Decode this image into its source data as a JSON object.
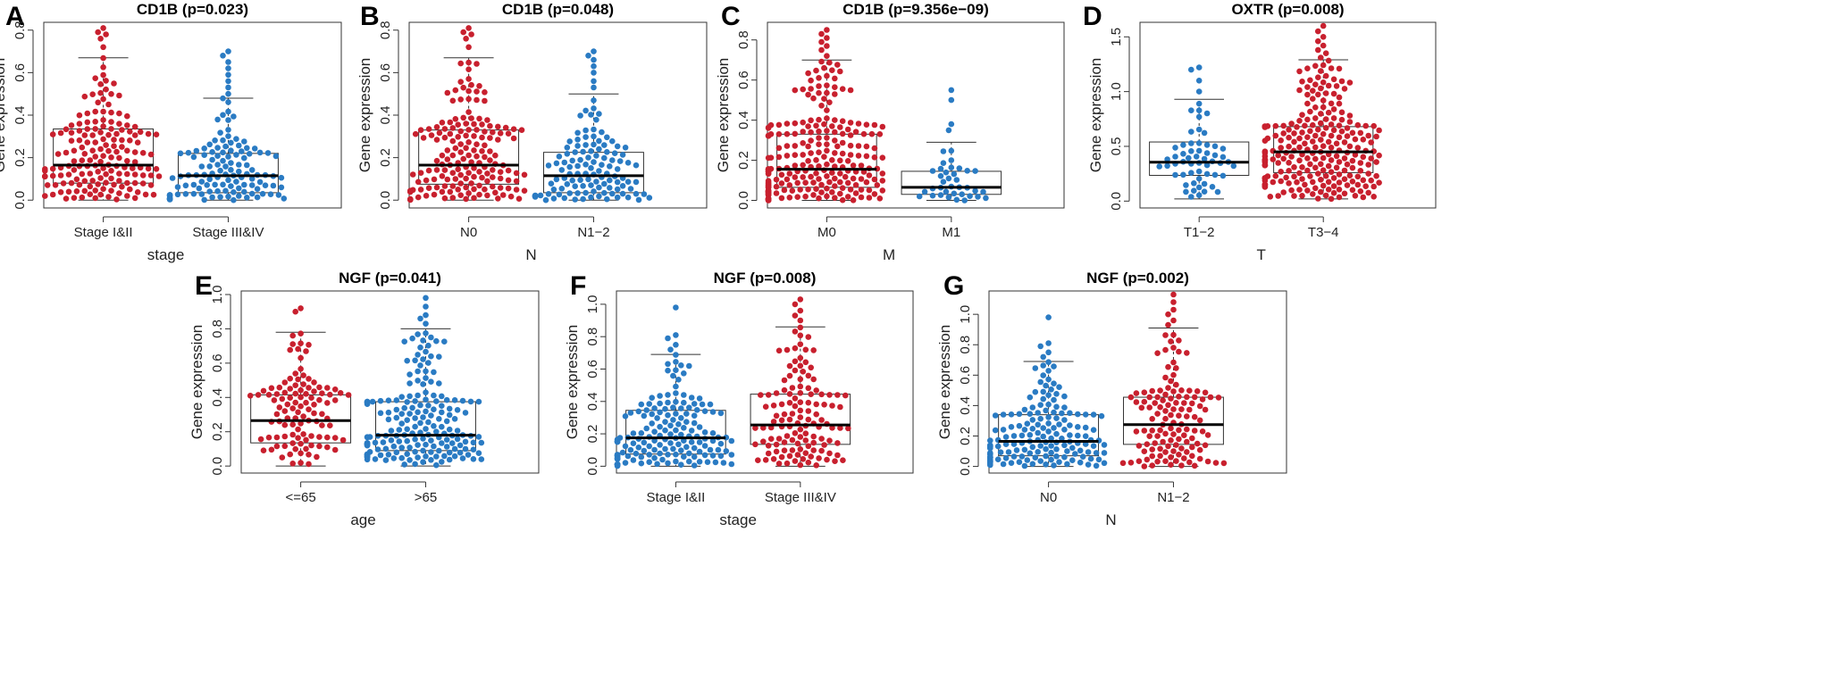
{
  "colors": {
    "red": "#c8202e",
    "blue": "#2a7bc3",
    "axis": "#333333"
  },
  "chart_data": [
    {
      "label": "A",
      "type": "box-beeswarm",
      "title": "CD1B (p=0.023)",
      "xlabel": "stage",
      "ylabel": "Gene expression",
      "ylim": [
        -0.02,
        0.82
      ],
      "yticks": [
        "0.0",
        "0.2",
        "0.4",
        "0.6",
        "0.8"
      ],
      "groups": [
        {
          "name": "Stage I&II",
          "color": "red",
          "n": 170,
          "min": 0.0,
          "q1": 0.08,
          "median": 0.165,
          "q3": 0.335,
          "whisker_high": 0.67,
          "outliers": [
            0.72,
            0.76,
            0.78,
            0.79,
            0.81
          ]
        },
        {
          "name": "Stage III&IV",
          "color": "blue",
          "n": 130,
          "min": 0.0,
          "q1": 0.035,
          "median": 0.115,
          "q3": 0.22,
          "whisker_high": 0.48,
          "outliers": [
            0.5,
            0.53,
            0.56,
            0.59,
            0.62,
            0.65,
            0.68,
            0.7
          ]
        }
      ]
    },
    {
      "label": "B",
      "type": "box-beeswarm",
      "title": "CD1B (p=0.048)",
      "xlabel": "N",
      "ylabel": "Gene expression",
      "ylim": [
        -0.02,
        0.82
      ],
      "yticks": [
        "0.0",
        "0.2",
        "0.4",
        "0.6",
        "0.8"
      ],
      "groups": [
        {
          "name": "N0",
          "color": "red",
          "n": 175,
          "min": 0.0,
          "q1": 0.075,
          "median": 0.165,
          "q3": 0.33,
          "whisker_high": 0.67,
          "outliers": [
            0.72,
            0.76,
            0.78,
            0.79,
            0.81
          ]
        },
        {
          "name": "N1−2",
          "color": "blue",
          "n": 125,
          "min": 0.0,
          "q1": 0.035,
          "median": 0.115,
          "q3": 0.225,
          "whisker_high": 0.5,
          "outliers": [
            0.53,
            0.56,
            0.6,
            0.63,
            0.66,
            0.68,
            0.7
          ]
        }
      ]
    },
    {
      "label": "C",
      "type": "box-beeswarm",
      "title": "CD1B (p=9.356e−09)",
      "xlabel": "M",
      "ylabel": "Gene expression",
      "ylim": [
        -0.02,
        0.87
      ],
      "yticks": [
        "0.0",
        "0.2",
        "0.4",
        "0.6",
        "0.8"
      ],
      "groups": [
        {
          "name": "M0",
          "color": "red",
          "n": 250,
          "min": 0.0,
          "q1": 0.065,
          "median": 0.155,
          "q3": 0.33,
          "whisker_high": 0.7,
          "outliers": [
            0.72,
            0.75,
            0.77,
            0.79,
            0.81,
            0.83,
            0.85
          ]
        },
        {
          "name": "M1",
          "color": "blue",
          "n": 40,
          "min": 0.0,
          "q1": 0.03,
          "median": 0.065,
          "q3": 0.145,
          "whisker_high": 0.29,
          "outliers": [
            0.35,
            0.38,
            0.5,
            0.55
          ]
        }
      ]
    },
    {
      "label": "D",
      "type": "box-beeswarm",
      "title": "OXTR (p=0.008)",
      "xlabel": "T",
      "ylabel": "Gene expression",
      "ylim": [
        -0.03,
        1.6
      ],
      "yticks": [
        "0.0",
        "0.5",
        "1.0",
        "1.5"
      ],
      "groups": [
        {
          "name": "T1−2",
          "color": "blue",
          "n": 60,
          "min": 0.02,
          "q1": 0.235,
          "median": 0.355,
          "q3": 0.54,
          "whisker_high": 0.93,
          "outliers": [
            1.0,
            1.1,
            1.2,
            1.22
          ]
        },
        {
          "name": "T3−4",
          "color": "red",
          "n": 260,
          "min": 0.02,
          "q1": 0.26,
          "median": 0.45,
          "q3": 0.68,
          "whisker_high": 1.29,
          "outliers": [
            1.31,
            1.35,
            1.38,
            1.42,
            1.46,
            1.5,
            1.55,
            1.6
          ]
        }
      ]
    },
    {
      "label": "E",
      "type": "box-beeswarm",
      "title": "NGF (p=0.041)",
      "xlabel": "age",
      "ylabel": "Gene expression",
      "ylim": [
        -0.02,
        1.0
      ],
      "yticks": [
        "0.0",
        "0.2",
        "0.4",
        "0.6",
        "0.8",
        "1.0"
      ],
      "groups": [
        {
          "name": "<=65",
          "color": "red",
          "n": 110,
          "min": 0.0,
          "q1": 0.135,
          "median": 0.265,
          "q3": 0.415,
          "whisker_high": 0.78,
          "outliers": [
            0.9,
            0.92
          ]
        },
        {
          "name": ">65",
          "color": "blue",
          "n": 200,
          "min": 0.0,
          "q1": 0.09,
          "median": 0.18,
          "q3": 0.375,
          "whisker_high": 0.8,
          "outliers": [
            0.83,
            0.86,
            0.88,
            0.93,
            0.98
          ]
        }
      ]
    },
    {
      "label": "F",
      "type": "box-beeswarm",
      "title": "NGF (p=0.008)",
      "xlabel": "stage",
      "ylabel": "Gene expression",
      "ylim": [
        -0.02,
        1.06
      ],
      "yticks": [
        "0.0",
        "0.2",
        "0.4",
        "0.6",
        "0.8",
        "1.0"
      ],
      "groups": [
        {
          "name": "Stage I&II",
          "color": "blue",
          "n": 175,
          "min": 0.0,
          "q1": 0.075,
          "median": 0.175,
          "q3": 0.345,
          "whisker_high": 0.69,
          "outliers": [
            0.72,
            0.75,
            0.79,
            0.81,
            0.98
          ]
        },
        {
          "name": "Stage III&IV",
          "color": "red",
          "n": 130,
          "min": 0.0,
          "q1": 0.135,
          "median": 0.255,
          "q3": 0.445,
          "whisker_high": 0.86,
          "outliers": [
            0.9,
            0.93,
            0.96,
            1.0,
            1.03
          ]
        }
      ]
    },
    {
      "label": "G",
      "type": "box-beeswarm",
      "title": "NGF (p=0.002)",
      "xlabel": "N",
      "ylabel": "Gene expression",
      "ylim": [
        -0.02,
        1.13
      ],
      "yticks": [
        "0.0",
        "0.2",
        "0.4",
        "0.6",
        "0.8",
        "1.0"
      ],
      "groups": [
        {
          "name": "N0",
          "color": "blue",
          "n": 180,
          "min": 0.0,
          "q1": 0.07,
          "median": 0.165,
          "q3": 0.34,
          "whisker_high": 0.69,
          "outliers": [
            0.72,
            0.75,
            0.79,
            0.81,
            0.98
          ]
        },
        {
          "name": "N1−2",
          "color": "red",
          "n": 130,
          "min": 0.0,
          "q1": 0.145,
          "median": 0.275,
          "q3": 0.455,
          "whisker_high": 0.91,
          "outliers": [
            0.93,
            0.96,
            1.0,
            1.03,
            1.08,
            1.13
          ]
        }
      ]
    }
  ]
}
